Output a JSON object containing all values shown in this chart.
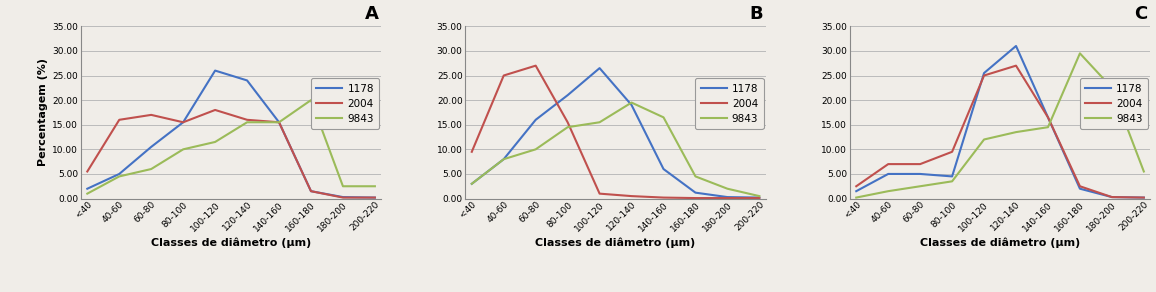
{
  "x_labels": [
    "<40",
    "40-60",
    "60-80",
    "80-100",
    "100-120",
    "120-140",
    "140-160",
    "160-180",
    "180-200",
    "200-220"
  ],
  "panels": [
    {
      "label": "A",
      "series": {
        "1178": [
          2.0,
          5.0,
          10.5,
          15.5,
          26.0,
          24.0,
          15.5,
          1.5,
          0.3,
          0.2
        ],
        "2004": [
          5.5,
          16.0,
          17.0,
          15.5,
          18.0,
          16.0,
          15.5,
          1.5,
          0.2,
          0.2
        ],
        "9843": [
          1.0,
          4.5,
          6.0,
          10.0,
          11.5,
          15.5,
          15.5,
          20.0,
          2.5,
          2.5
        ]
      }
    },
    {
      "label": "B",
      "series": {
        "1178": [
          3.0,
          8.0,
          16.0,
          21.0,
          26.5,
          19.0,
          6.0,
          1.2,
          0.3,
          0.2
        ],
        "2004": [
          9.5,
          25.0,
          27.0,
          15.5,
          1.0,
          0.5,
          0.2,
          0.1,
          0.1,
          0.1
        ],
        "9843": [
          3.0,
          8.0,
          10.0,
          14.5,
          15.5,
          19.5,
          16.5,
          4.5,
          2.0,
          0.5
        ]
      }
    },
    {
      "label": "C",
      "series": {
        "1178": [
          1.5,
          5.0,
          5.0,
          4.5,
          25.5,
          31.0,
          16.5,
          2.0,
          0.3,
          0.2
        ],
        "2004": [
          2.5,
          7.0,
          7.0,
          9.5,
          25.0,
          27.0,
          16.5,
          2.5,
          0.3,
          0.2
        ],
        "9843": [
          0.2,
          1.5,
          2.5,
          3.5,
          12.0,
          13.5,
          14.5,
          29.5,
          22.5,
          5.5
        ]
      }
    }
  ],
  "colors": {
    "1178": "#4472C4",
    "2004": "#C0504D",
    "9843": "#9BBB59"
  },
  "ylabel": "Percentagem (%)",
  "xlabel": "Classes de diâmetro (μm)",
  "ylim": [
    0,
    35
  ],
  "yticks": [
    0.0,
    5.0,
    10.0,
    15.0,
    20.0,
    25.0,
    30.0,
    35.0
  ],
  "background_color": "#f0ede8",
  "plot_bg_color": "#f0ede8",
  "grid_color": "#bbbbbb"
}
